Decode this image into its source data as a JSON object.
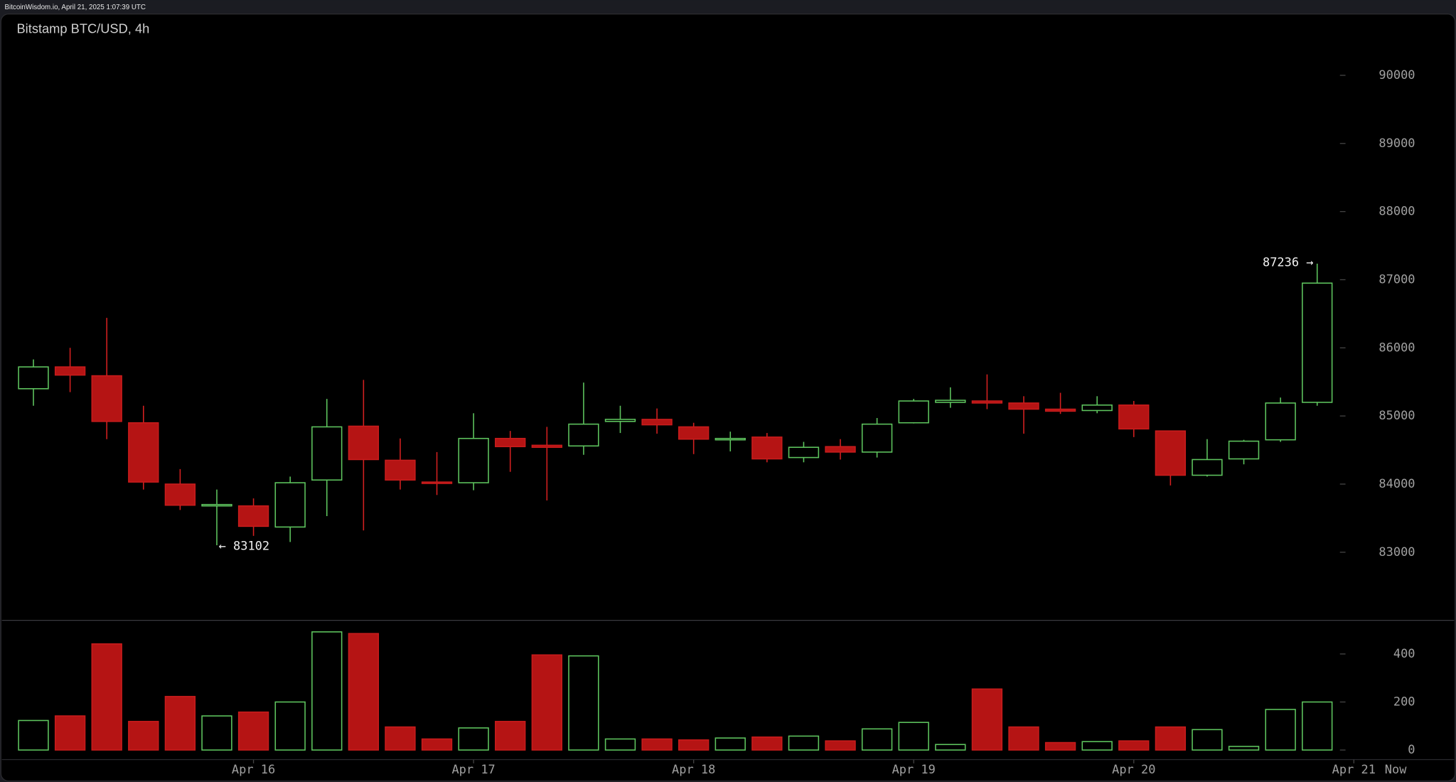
{
  "header": "BitcoinWisdom.io, April 21, 2025 1:07:39 UTC",
  "chart_data": [
    {
      "type": "candlestick",
      "title": "Bitstamp BTC/USD, 4h",
      "open": [
        85400,
        85720,
        85590,
        84900,
        84000,
        83680,
        83680,
        83370,
        84060,
        84850,
        84350,
        84030,
        84020,
        84670,
        84570,
        84560,
        84920,
        84950,
        84840,
        84650,
        84690,
        84390,
        84550,
        84470,
        84900,
        85200,
        85220,
        85190,
        85100,
        85080,
        85160,
        84780,
        84130,
        84370,
        84650,
        85200
      ],
      "high": [
        85830,
        86000,
        86440,
        85150,
        84220,
        83920,
        83790,
        84110,
        85250,
        85530,
        84670,
        84470,
        85040,
        84780,
        84840,
        85490,
        85150,
        85110,
        84900,
        84770,
        84750,
        84620,
        84660,
        84970,
        85250,
        85420,
        85610,
        85290,
        85340,
        85290,
        85220,
        84780,
        84660,
        84650,
        85270,
        87236
      ],
      "low": [
        85150,
        85350,
        84660,
        83920,
        83620,
        83102,
        83240,
        83150,
        83530,
        83320,
        83920,
        83840,
        83910,
        84180,
        83760,
        84430,
        84750,
        84740,
        84440,
        84480,
        84320,
        84320,
        84360,
        84390,
        84890,
        85120,
        85100,
        84740,
        85030,
        85040,
        84690,
        83980,
        84110,
        84290,
        84620,
        85150
      ],
      "close": [
        85720,
        85600,
        84920,
        84030,
        83690,
        83700,
        83380,
        84020,
        84840,
        84360,
        84060,
        84010,
        84670,
        84550,
        84540,
        84880,
        84950,
        84870,
        84660,
        84670,
        84370,
        84540,
        84470,
        84880,
        85220,
        85230,
        85190,
        85100,
        85070,
        85160,
        84810,
        84130,
        84360,
        84630,
        85190,
        86950
      ],
      "up_color": "#5ec45e",
      "down_color": "#b51414",
      "ylim": [
        82000,
        90900
      ],
      "yticks": [
        83000,
        84000,
        85000,
        86000,
        87000,
        88000,
        89000,
        90000
      ],
      "xticks": [
        {
          "value": 6,
          "label": "Apr 16"
        },
        {
          "value": 12,
          "label": "Apr 17"
        },
        {
          "value": 18,
          "label": "Apr 18"
        },
        {
          "value": 24,
          "label": "Apr 19"
        },
        {
          "value": 30,
          "label": "Apr 20"
        },
        {
          "value": 36,
          "label": "Apr 21"
        }
      ],
      "now_label": "Now",
      "max_label": "87236 →",
      "min_label": "← 83102"
    },
    {
      "type": "bar",
      "values": [
        123,
        142,
        442,
        119,
        223,
        142,
        158,
        200,
        492,
        485,
        96,
        46,
        92,
        119,
        396,
        392,
        46,
        46,
        42,
        50,
        54,
        58,
        38,
        88,
        115,
        23,
        254,
        96,
        31,
        35,
        38,
        96,
        85,
        15,
        169,
        200
      ],
      "ylim": [
        -40,
        540
      ],
      "yticks": [
        0,
        200,
        400
      ]
    }
  ]
}
